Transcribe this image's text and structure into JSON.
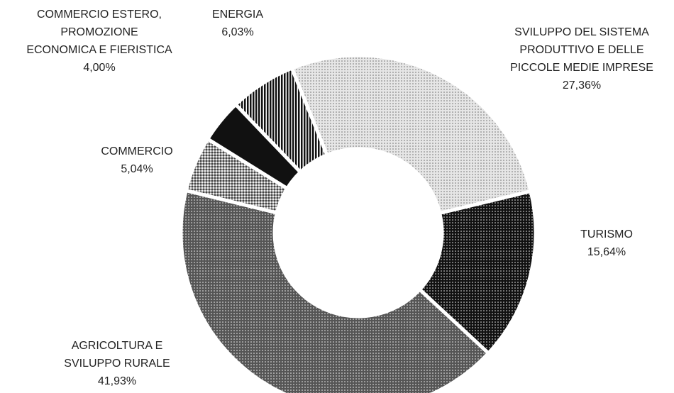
{
  "chart_data": {
    "type": "donut",
    "categories": [
      "SVILUPPO DEL SISTEMA\nPRODUTTIVO E DELLE\nPICCOLE MEDIE IMPRESE",
      "TURISMO",
      "AGRICOLTURA E\nSVILUPPO RURALE",
      "COMMERCIO",
      "COMMERCIO ESTERO,\nPROMOZIONE\nECONOMICA E FIERISTICA",
      "ENERGIA"
    ],
    "values": [
      27.36,
      15.64,
      41.93,
      5.04,
      4.0,
      6.03
    ],
    "value_labels": [
      "27,36%",
      "15,64%",
      "41,93%",
      "5,04%",
      "4,00%",
      "6,03%"
    ],
    "colors": [
      "#e6e6e6",
      "#111111",
      "#555555",
      "#9a9a9a",
      "#111111",
      "#111111"
    ],
    "patterns": [
      "dots",
      "dots",
      "dots",
      "checker",
      "solid",
      "stripes"
    ]
  }
}
